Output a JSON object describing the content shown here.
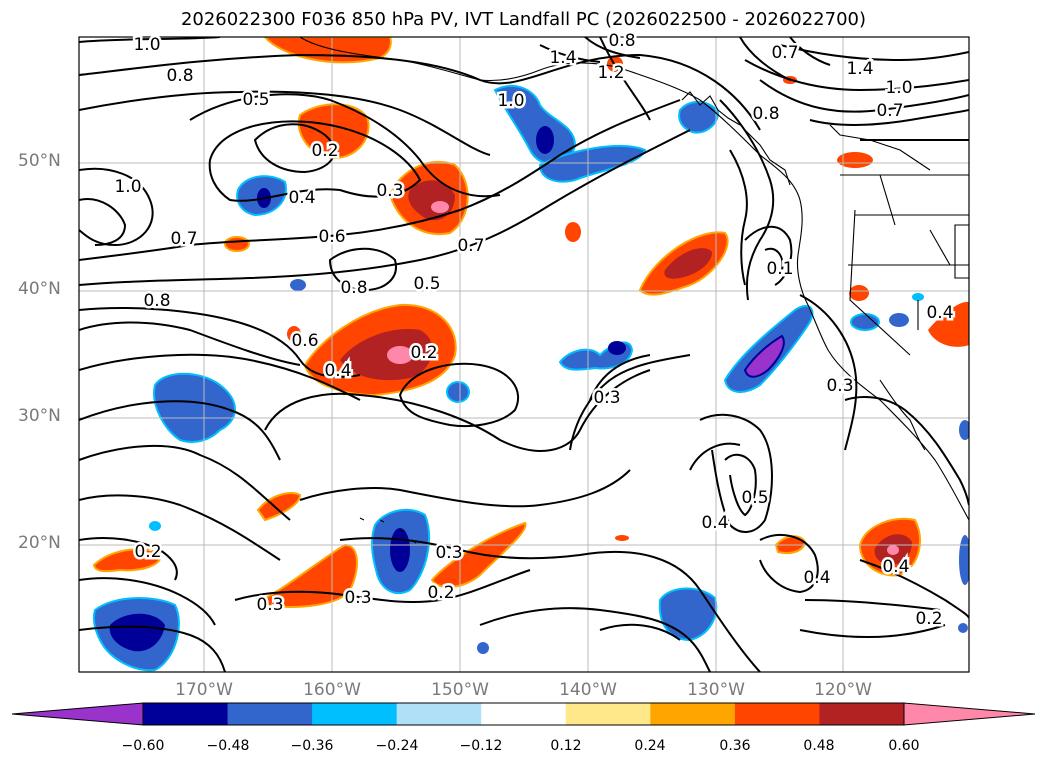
{
  "title": "2026022300 F036 850 hPa PV, IVT Landfall PC (2026022500 - 2026022700)",
  "lat_labels": [
    "50°N",
    "40°N",
    "30°N",
    "20°N"
  ],
  "lon_labels": [
    "170°W",
    "160°W",
    "150°W",
    "140°W",
    "130°W",
    "120°W"
  ],
  "contour_labels": [
    "1.0",
    "0.8",
    "0.5",
    "0.2",
    "0.4",
    "0.3",
    "1.4",
    "1.2",
    "1.0",
    "0.7",
    "0.8",
    "0.6",
    "0.8",
    "0.5",
    "0.7",
    "0.6",
    "0.4",
    "0.2",
    "0.3",
    "0.1",
    "0.5",
    "0.4",
    "0.3",
    "0.3",
    "0.2",
    "0.3",
    "0.2",
    "0.4",
    "0.4",
    "0.2",
    "1.4",
    "1.0",
    "0.7",
    "0.8",
    "1.0",
    "0.7",
    "0.8",
    "0.3",
    "0.4"
  ],
  "colorbar": {
    "colors": [
      "#9933cc",
      "#000099",
      "#3366cc",
      "#00bfff",
      "#b0e0f8",
      "#ffffff",
      "#ffe88a",
      "#ffa500",
      "#ff4500",
      "#b22222",
      "#ff88aa"
    ],
    "tick_labels": [
      "−0.60",
      "−0.48",
      "−0.36",
      "−0.24",
      "−0.12",
      "0.12",
      "0.24",
      "0.36",
      "0.48",
      "0.60"
    ]
  }
}
